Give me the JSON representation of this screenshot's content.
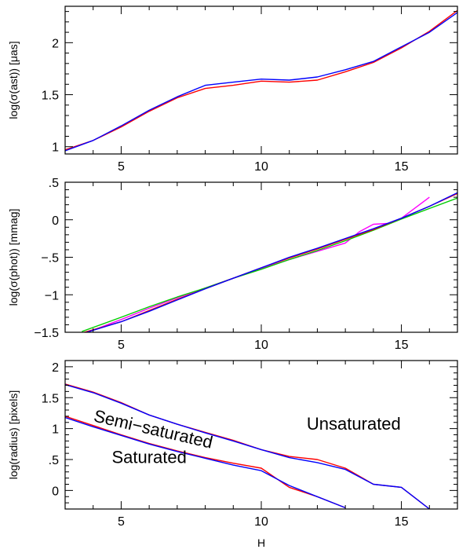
{
  "chart_data": [
    {
      "type": "line",
      "panel": "top",
      "xlabel": "",
      "ylabel": "log(σ(ast)) [μas]",
      "xlim": [
        3,
        17
      ],
      "ylim": [
        0.93,
        2.35
      ],
      "xticks": [
        5,
        10,
        15
      ],
      "yticks": [
        1,
        1.5,
        2
      ],
      "ytick_labels": [
        "1",
        "1.5",
        "2"
      ],
      "series": [
        {
          "color": "#ff0000",
          "x": [
            3,
            4,
            5,
            6,
            7,
            8,
            9,
            10,
            11,
            12,
            13,
            14,
            15,
            16,
            17
          ],
          "y": [
            0.97,
            1.06,
            1.19,
            1.34,
            1.47,
            1.56,
            1.59,
            1.63,
            1.62,
            1.64,
            1.72,
            1.81,
            1.95,
            2.11,
            2.31
          ]
        },
        {
          "color": "#0000ff",
          "x": [
            3,
            4,
            5,
            6,
            7,
            8,
            9,
            10,
            11,
            12,
            13,
            14,
            15,
            16,
            17
          ],
          "y": [
            0.96,
            1.06,
            1.2,
            1.35,
            1.48,
            1.59,
            1.62,
            1.65,
            1.64,
            1.67,
            1.74,
            1.82,
            1.96,
            2.1,
            2.29
          ]
        }
      ]
    },
    {
      "type": "line",
      "panel": "middle",
      "xlabel": "",
      "ylabel": "log(σ(phot)) [mmag]",
      "xlim": [
        3,
        17
      ],
      "ylim": [
        -1.5,
        0.5
      ],
      "xticks": [
        5,
        10,
        15
      ],
      "yticks": [
        -1.5,
        -1,
        -0.5,
        0,
        0.5
      ],
      "ytick_labels": [
        "−1.5",
        "−1",
        "−.5",
        "0",
        ".5"
      ],
      "series": [
        {
          "color": "#ff00ff",
          "x": [
            3.8,
            5,
            6,
            7,
            8,
            9,
            10,
            11,
            12,
            13,
            13.5,
            14,
            14.5,
            15,
            16
          ],
          "y": [
            -1.5,
            -1.33,
            -1.18,
            -1.04,
            -0.91,
            -0.78,
            -0.65,
            -0.53,
            -0.42,
            -0.31,
            -0.16,
            -0.06,
            -0.05,
            0.02,
            0.3
          ]
        },
        {
          "color": "#00cc00",
          "x": [
            3.6,
            5,
            6,
            7,
            8,
            9,
            10,
            11,
            12,
            13,
            14,
            15,
            16,
            17
          ],
          "y": [
            -1.49,
            -1.3,
            -1.16,
            -1.03,
            -0.91,
            -0.78,
            -0.66,
            -0.53,
            -0.41,
            -0.28,
            -0.14,
            0.01,
            0.15,
            0.29
          ]
        },
        {
          "color": "#ff0000",
          "x": [
            3.5,
            5,
            6,
            7,
            8,
            9,
            10,
            11,
            12,
            13,
            14,
            15,
            16,
            17
          ],
          "y": [
            -1.52,
            -1.36,
            -1.21,
            -1.06,
            -0.92,
            -0.78,
            -0.64,
            -0.51,
            -0.39,
            -0.26,
            -0.13,
            0.02,
            0.18,
            0.35
          ]
        },
        {
          "color": "#0000ff",
          "x": [
            3.5,
            5,
            6,
            7,
            8,
            9,
            10,
            11,
            12,
            13,
            14,
            15,
            16,
            17
          ],
          "y": [
            -1.53,
            -1.36,
            -1.22,
            -1.07,
            -0.92,
            -0.78,
            -0.64,
            -0.5,
            -0.38,
            -0.25,
            -0.12,
            0.02,
            0.18,
            0.36
          ]
        }
      ]
    },
    {
      "type": "line",
      "panel": "bottom",
      "xlabel": "H",
      "ylabel": "log(radius) [pixels]",
      "xlim": [
        3,
        17
      ],
      "ylim": [
        -0.3,
        2.1
      ],
      "xticks": [
        5,
        10,
        15
      ],
      "yticks": [
        0,
        0.5,
        1,
        1.5,
        2
      ],
      "ytick_labels": [
        "0",
        ".5",
        "1",
        "1.5",
        "2"
      ],
      "annotations": [
        {
          "text": "Unsaturated",
          "x": 13.3,
          "y": 0.98
        },
        {
          "text": "Semi−saturated",
          "x": 6.1,
          "y": 0.9
        },
        {
          "text": "Saturated",
          "x": 6.0,
          "y": 0.44
        }
      ],
      "series": [
        {
          "color": "#ff0000",
          "group": "upper",
          "x": [
            3,
            4,
            5,
            6,
            7,
            8,
            9,
            10,
            11,
            12,
            13,
            14,
            15,
            16
          ],
          "y": [
            1.72,
            1.59,
            1.42,
            1.22,
            1.07,
            0.94,
            0.81,
            0.66,
            0.55,
            0.5,
            0.36,
            0.1,
            0.05,
            -0.3
          ]
        },
        {
          "color": "#0000ff",
          "group": "upper",
          "x": [
            3,
            4,
            5,
            6,
            7,
            8,
            9,
            10,
            11,
            12,
            13,
            14,
            15,
            16
          ],
          "y": [
            1.71,
            1.58,
            1.41,
            1.22,
            1.07,
            0.93,
            0.8,
            0.66,
            0.53,
            0.45,
            0.34,
            0.1,
            0.05,
            -0.3
          ]
        },
        {
          "color": "#ff0000",
          "group": "lower",
          "x": [
            3,
            4,
            5,
            6,
            7,
            8,
            9,
            10,
            11,
            12,
            13
          ],
          "y": [
            1.2,
            1.05,
            0.9,
            0.76,
            0.64,
            0.53,
            0.44,
            0.36,
            0.05,
            -0.1,
            -0.28
          ]
        },
        {
          "color": "#0000ff",
          "group": "lower",
          "x": [
            3,
            4,
            5,
            6,
            7,
            8,
            9,
            10,
            11,
            12,
            13
          ],
          "y": [
            1.18,
            1.03,
            0.89,
            0.75,
            0.63,
            0.52,
            0.41,
            0.32,
            0.08,
            -0.1,
            -0.28
          ]
        }
      ]
    }
  ]
}
